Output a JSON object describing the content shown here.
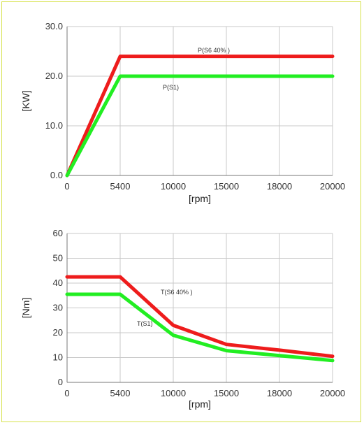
{
  "chart_data": [
    {
      "type": "line",
      "title": "",
      "xlabel": "[rpm]",
      "ylabel": "[KW]",
      "x_ticks": [
        0,
        5400,
        10000,
        15000,
        18000,
        20000
      ],
      "y_ticks": [
        "0.0",
        "10.0",
        "20.0",
        "30.0"
      ],
      "ylim": [
        0,
        30
      ],
      "grid": true,
      "series": [
        {
          "name": "P(S6 40% )",
          "color": "#ee1c1c",
          "points": [
            [
              0,
              0
            ],
            [
              5400,
              24
            ],
            [
              20000,
              24
            ]
          ]
        },
        {
          "name": "P(S1)",
          "color": "#22ee22",
          "points": [
            [
              0,
              0
            ],
            [
              5400,
              20
            ],
            [
              20000,
              20
            ]
          ]
        }
      ]
    },
    {
      "type": "line",
      "title": "",
      "xlabel": "[rpm]",
      "ylabel": "[Nm]",
      "x_ticks": [
        0,
        5400,
        10000,
        15000,
        18000,
        20000
      ],
      "y_ticks": [
        "0",
        "10",
        "20",
        "30",
        "40",
        "50",
        "60"
      ],
      "ylim": [
        0,
        60
      ],
      "grid": true,
      "series": [
        {
          "name": "T(S6 40% )",
          "color": "#ee1c1c",
          "points": [
            [
              0,
              42.5
            ],
            [
              5400,
              42.5
            ],
            [
              10000,
              23
            ],
            [
              15000,
              15.3
            ],
            [
              18000,
              13
            ],
            [
              20000,
              10.5
            ]
          ]
        },
        {
          "name": "T(S1)",
          "color": "#22ee22",
          "points": [
            [
              0,
              35.5
            ],
            [
              5400,
              35.5
            ],
            [
              10000,
              19
            ],
            [
              15000,
              12.8
            ],
            [
              18000,
              10.8
            ],
            [
              20000,
              8.8
            ]
          ]
        }
      ]
    }
  ]
}
